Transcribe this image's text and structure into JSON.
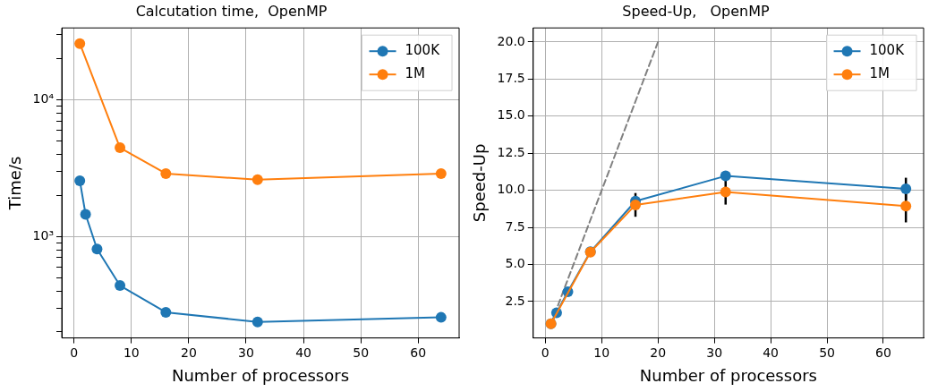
{
  "chart_data": [
    {
      "type": "line",
      "title": "Calcutation time,  OpenMP",
      "xlabel": "Number of processors",
      "ylabel": "Time/s",
      "log": "y",
      "grid": true,
      "legend": "top right",
      "marker": "circle",
      "xlim": [
        -2.15,
        67.15
      ],
      "xticks": [
        0,
        10,
        20,
        30,
        40,
        50,
        60
      ],
      "ylim": [
        181,
        33700
      ],
      "yticks": [
        {
          "value": 200,
          "label": null
        },
        {
          "value": 300,
          "label": null
        },
        {
          "value": 400,
          "label": null
        },
        {
          "value": 500,
          "label": null
        },
        {
          "value": 600,
          "label": null
        },
        {
          "value": 700,
          "label": null
        },
        {
          "value": 800,
          "label": null
        },
        {
          "value": 900,
          "label": null
        },
        {
          "value": 1000,
          "label": "10³"
        },
        {
          "value": 2000,
          "label": null
        },
        {
          "value": 3000,
          "label": null
        },
        {
          "value": 4000,
          "label": null
        },
        {
          "value": 5000,
          "label": null
        },
        {
          "value": 6000,
          "label": null
        },
        {
          "value": 7000,
          "label": null
        },
        {
          "value": 8000,
          "label": null
        },
        {
          "value": 9000,
          "label": null
        },
        {
          "value": 10000,
          "label": "10⁴"
        },
        {
          "value": 20000,
          "label": null
        },
        {
          "value": 30000,
          "label": null
        }
      ],
      "series": [
        {
          "name": "100K",
          "color": "#1f77b4",
          "x": [
            1,
            2,
            4,
            8,
            16,
            32,
            64
          ],
          "values": [
            2560,
            1455,
            811,
            438,
            279,
            237,
            256
          ]
        },
        {
          "name": "1M",
          "color": "#ff7f0e",
          "x": [
            1,
            8,
            16,
            32,
            64
          ],
          "values": [
            25900,
            4470,
            2890,
            2610,
            2890
          ]
        }
      ]
    },
    {
      "type": "line",
      "title": "Speed-Up,   OpenMP",
      "xlabel": "Number of processors",
      "ylabel": "Speed-Up",
      "grid": true,
      "legend": "top right",
      "marker": "circle",
      "xlim": [
        -2.15,
        67.15
      ],
      "xticks": [
        0,
        10,
        20,
        30,
        40,
        50,
        60
      ],
      "ylim": [
        0.05,
        20.95
      ],
      "yticks": [
        {
          "value": 2.5,
          "label": "2.5"
        },
        {
          "value": 5,
          "label": "5.0"
        },
        {
          "value": 7.5,
          "label": "7.5"
        },
        {
          "value": 10,
          "label": "10.0"
        },
        {
          "value": 12.5,
          "label": "12.5"
        },
        {
          "value": 15,
          "label": "15.0"
        },
        {
          "value": 17.5,
          "label": "17.5"
        },
        {
          "value": 20,
          "label": "20.0"
        }
      ],
      "series": [
        {
          "color": "#808080",
          "x": [
            1,
            20
          ],
          "values": [
            1,
            20
          ],
          "line_style": "dashed",
          "marker": "none"
        },
        {
          "name": "100K",
          "color": "#1f77b4",
          "x": [
            1,
            2,
            4,
            8,
            16,
            32,
            64
          ],
          "values": [
            1,
            1.75,
            3.16,
            5.86,
            9.27,
            10.97,
            10.1
          ],
          "errors": [
            null,
            null,
            null,
            null,
            null,
            null,
            0.75
          ]
        },
        {
          "name": "1M",
          "color": "#ff7f0e",
          "x": [
            1,
            8,
            16,
            32,
            64
          ],
          "values": [
            1,
            5.83,
            9.02,
            9.89,
            8.94
          ],
          "errors": [
            null,
            null,
            0.8,
            0.85,
            1.1
          ]
        }
      ]
    }
  ]
}
